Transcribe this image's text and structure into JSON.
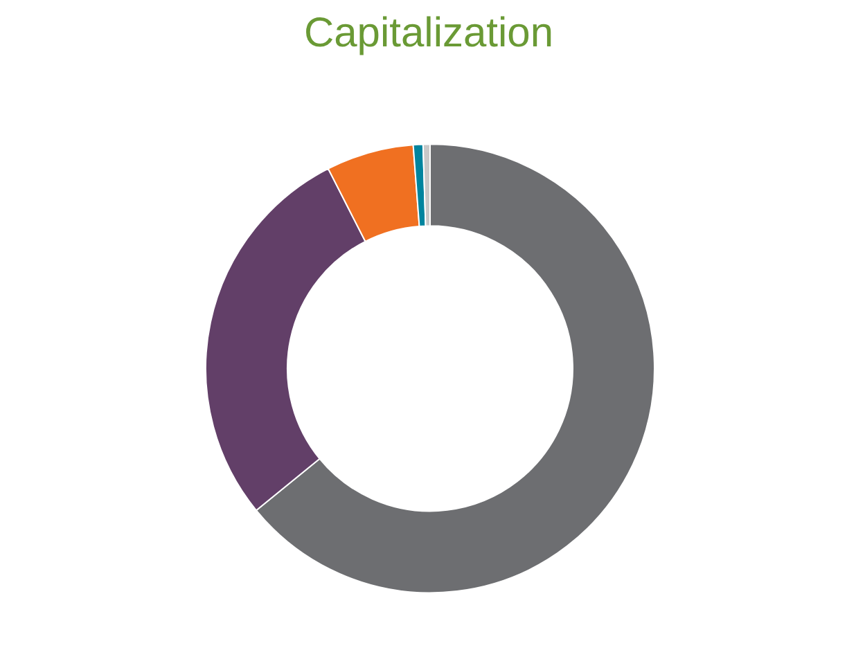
{
  "chart_data": {
    "type": "donut",
    "title": "Capitalization",
    "categories": [
      null,
      null,
      null,
      null,
      null
    ],
    "values": [
      64.1,
      28.4,
      6.3,
      0.7,
      0.5
    ],
    "colors": [
      "#6d6e71",
      "#623f68",
      "#f07021",
      "#00849e",
      "#c8c8c8"
    ]
  }
}
